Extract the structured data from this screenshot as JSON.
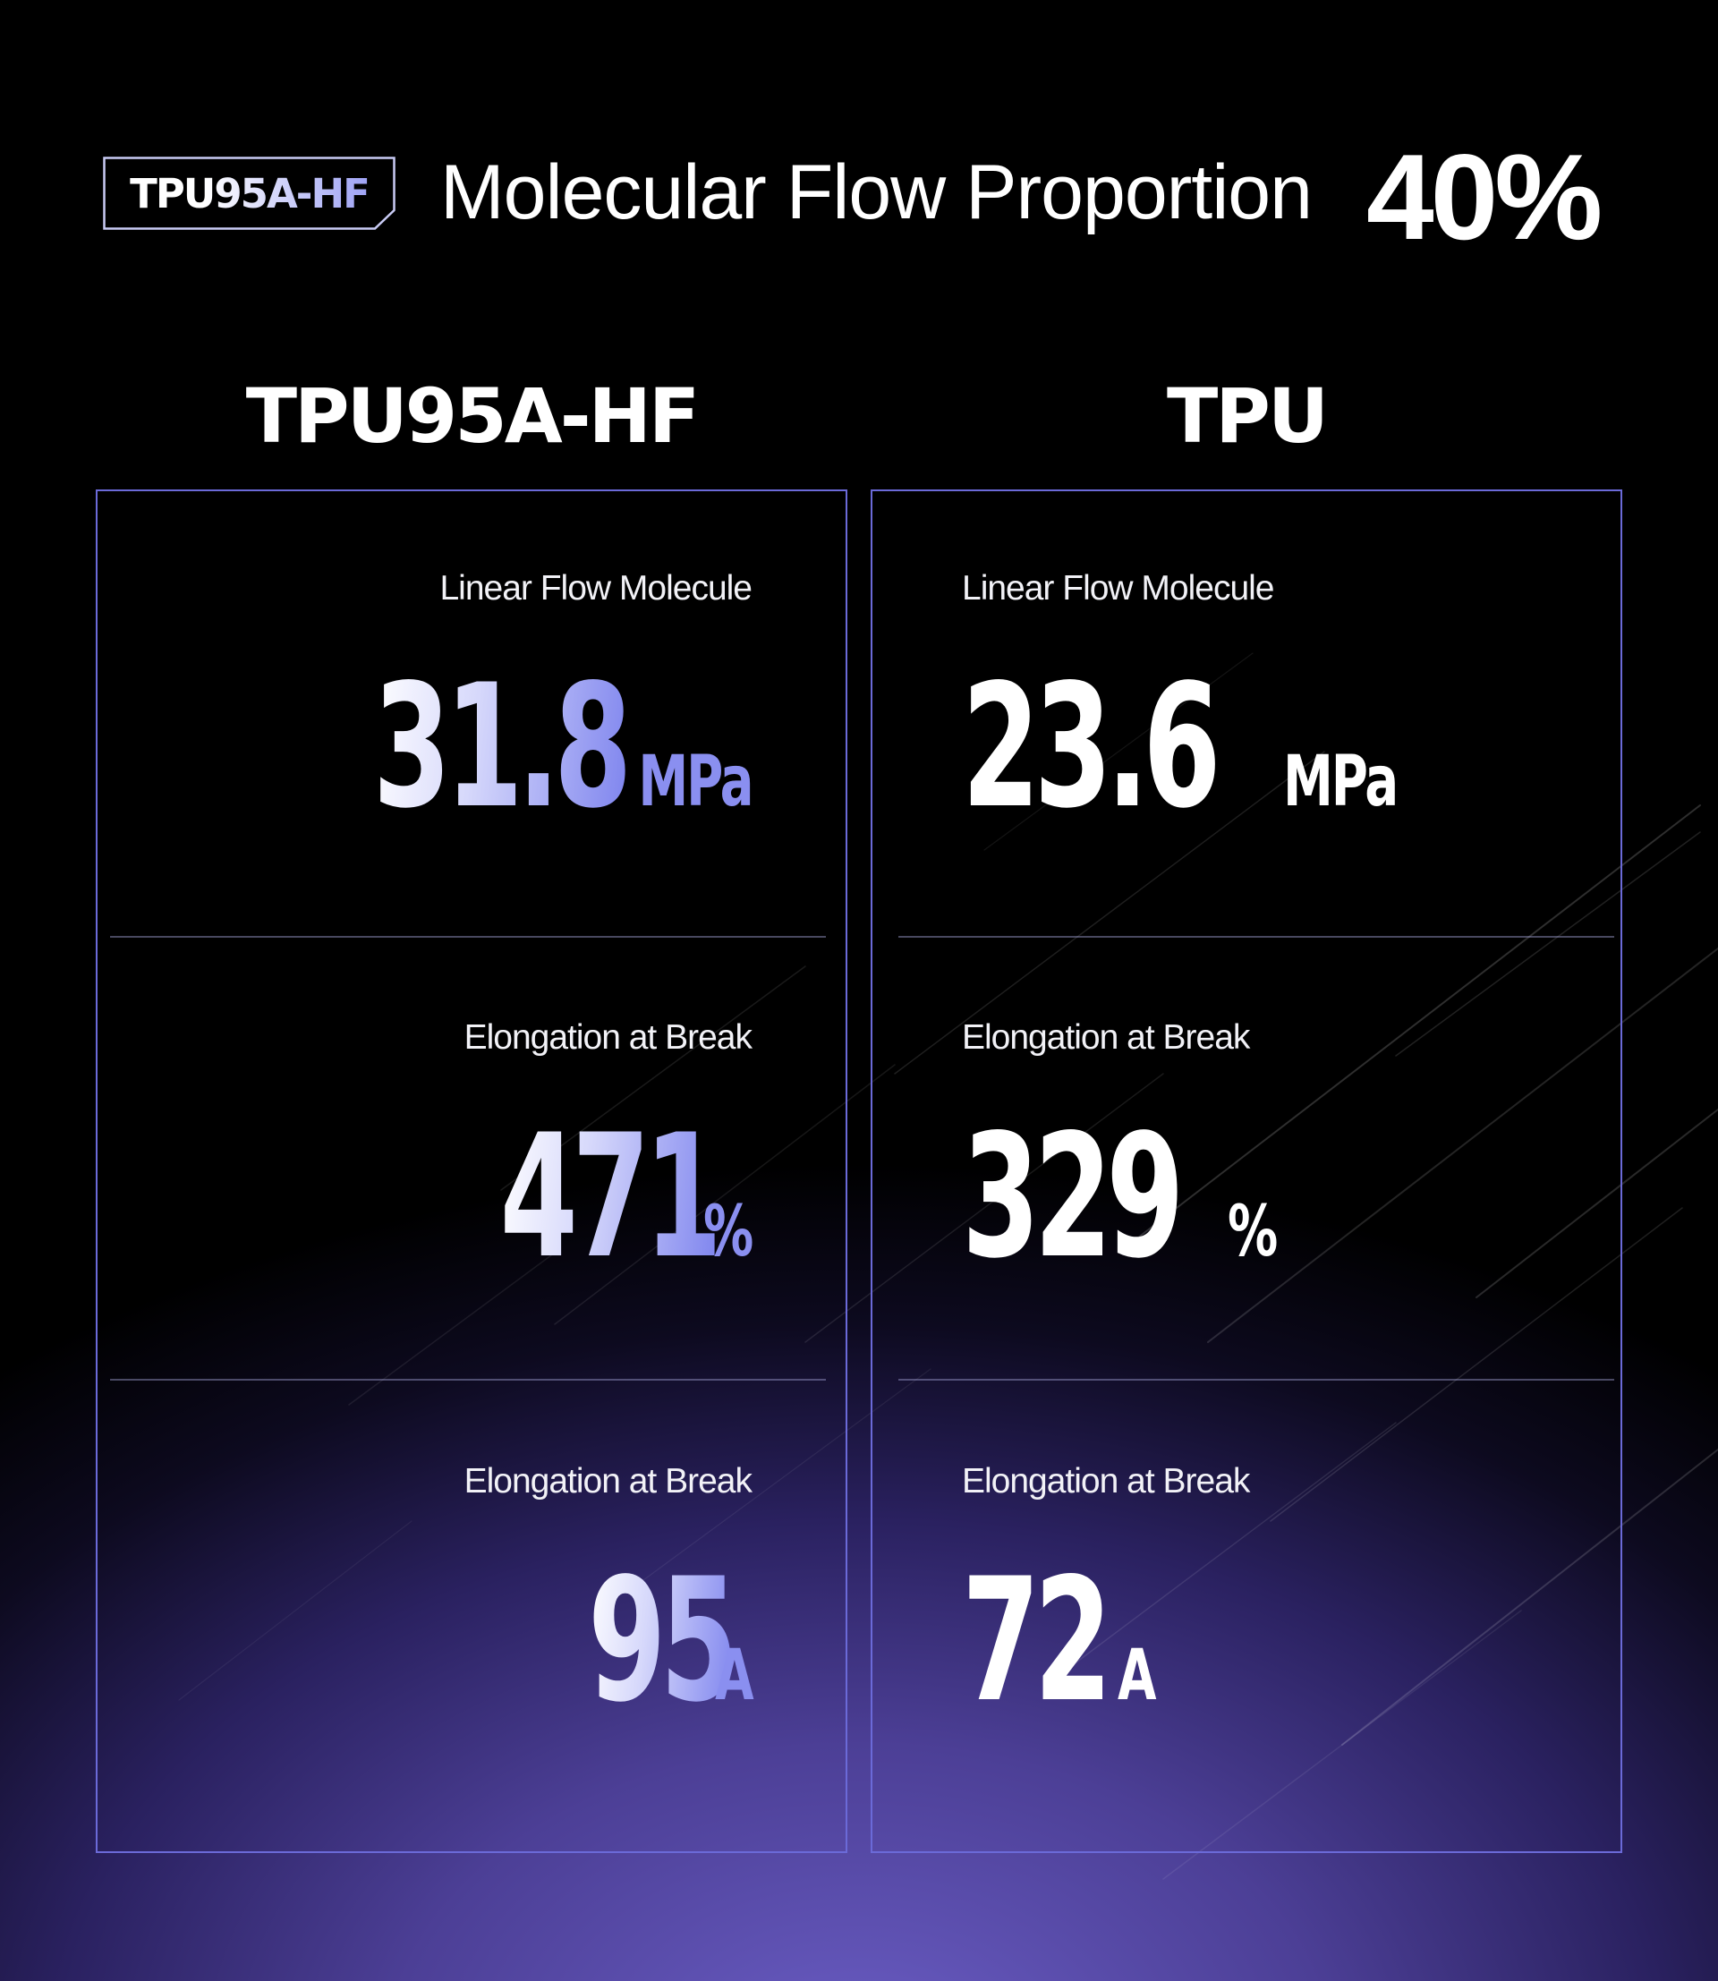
{
  "header": {
    "badge": "TPU95A-HF",
    "title": "Molecular Flow Proportion",
    "percent": "40%"
  },
  "columns": [
    {
      "title": "TPU95A-HF",
      "metrics": [
        {
          "label": "Linear Flow Molecule",
          "value": "31.8",
          "unit": "MPa"
        },
        {
          "label": "Elongation at Break",
          "value": "471",
          "unit": "%"
        },
        {
          "label": "Elongation at Break",
          "value": "95",
          "unit": "A"
        }
      ]
    },
    {
      "title": "TPU",
      "metrics": [
        {
          "label": "Linear Flow Molecule",
          "value": "23.6",
          "unit": "MPa"
        },
        {
          "label": "Elongation at Break",
          "value": "329",
          "unit": "%"
        },
        {
          "label": "Elongation at Break",
          "value": "72",
          "unit": "A"
        }
      ]
    }
  ],
  "colors": {
    "background_glow": "#6a5dc4",
    "panel_border": "#6b6ad8",
    "accent_violet": "#8a8ff0"
  }
}
